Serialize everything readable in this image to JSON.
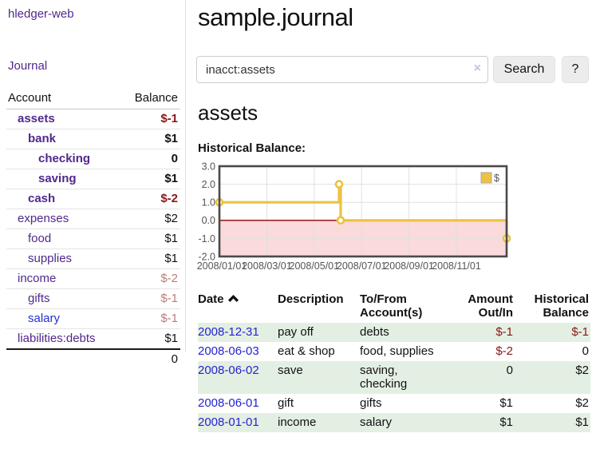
{
  "app": {
    "title": "hledger-web"
  },
  "sidebar": {
    "journal_link": "Journal",
    "accounts_header": {
      "account": "Account",
      "balance": "Balance"
    },
    "accounts": [
      {
        "name": "assets",
        "balance": "$-1",
        "level": 0,
        "bold": true,
        "balance_style": "neg-strong"
      },
      {
        "name": "bank",
        "balance": "$1",
        "level": 1,
        "bold": true,
        "balance_style": "pos-strong"
      },
      {
        "name": "checking",
        "balance": "0",
        "level": 2,
        "bold": true,
        "balance_style": "pos-strong"
      },
      {
        "name": "saving",
        "balance": "$1",
        "level": 2,
        "bold": true,
        "balance_style": "pos-strong"
      },
      {
        "name": "cash",
        "balance": "$-2",
        "level": 1,
        "bold": true,
        "balance_style": "neg-strong"
      },
      {
        "name": "expenses",
        "balance": "$2",
        "level": 0,
        "bold": false,
        "balance_style": "pos"
      },
      {
        "name": "food",
        "balance": "$1",
        "level": 1,
        "bold": false,
        "balance_style": "pos"
      },
      {
        "name": "supplies",
        "balance": "$1",
        "level": 1,
        "bold": false,
        "balance_style": "pos"
      },
      {
        "name": "income",
        "balance": "$-2",
        "level": 0,
        "bold": false,
        "balance_style": "neg-dim"
      },
      {
        "name": "gifts",
        "balance": "$-1",
        "level": 1,
        "bold": false,
        "balance_style": "neg-dim"
      },
      {
        "name": "salary",
        "balance": "$-1",
        "level": 1,
        "bold": false,
        "balance_style": "neg-dim",
        "link_style": "blue"
      },
      {
        "name": "liabilities:debts",
        "balance": "$1",
        "level": 0,
        "bold": false,
        "balance_style": "pos"
      }
    ],
    "total": "0"
  },
  "header": {
    "title": "sample.journal"
  },
  "search": {
    "value": "inacct:assets",
    "clear_icon": "×",
    "button": "Search",
    "help_button": "?"
  },
  "account_page": {
    "heading": "assets",
    "chart_label": "Historical Balance:"
  },
  "chart_data": {
    "type": "line",
    "title": "Historical Balance",
    "step": true,
    "series": [
      {
        "name": "$",
        "color": "#edc240",
        "points": [
          [
            "2008-01-01",
            1
          ],
          [
            "2008-06-01",
            2
          ],
          [
            "2008-06-03",
            0
          ],
          [
            "2008-12-31",
            -1
          ]
        ]
      }
    ],
    "x_ticks": [
      "2008/01/01",
      "2008/03/01",
      "2008/05/01",
      "2008/07/01",
      "2008/09/01",
      "2008/11/01"
    ],
    "y_ticks": [
      "3.0",
      "2.0",
      "1.0",
      "0.0",
      "-1.0",
      "-2.0"
    ],
    "ylim": [
      -2,
      3
    ],
    "legend": "$",
    "legend_position": "top-right",
    "negative_region_color": "#fadada",
    "zero_line_color": "#8b0000",
    "grid": true
  },
  "register_table": {
    "columns": [
      {
        "label": "Date",
        "sorted": "asc"
      },
      {
        "label": "Description"
      },
      {
        "label": "To/From Account(s)"
      },
      {
        "label": "Amount Out/In",
        "align": "right"
      },
      {
        "label": "Historical Balance",
        "align": "right"
      }
    ],
    "rows": [
      {
        "date": "2008-12-31",
        "description": "pay off",
        "accounts": "debts",
        "amount": "$-1",
        "balance": "$-1"
      },
      {
        "date": "2008-06-03",
        "description": "eat & shop",
        "accounts": "food, supplies",
        "amount": "$-2",
        "balance": "0"
      },
      {
        "date": "2008-06-02",
        "description": "save",
        "accounts": "saving, checking",
        "amount": "0",
        "balance": "$2"
      },
      {
        "date": "2008-06-01",
        "description": "gift",
        "accounts": "gifts",
        "amount": "$1",
        "balance": "$2"
      },
      {
        "date": "2008-01-01",
        "description": "income",
        "accounts": "salary",
        "amount": "$1",
        "balance": "$1"
      }
    ]
  }
}
